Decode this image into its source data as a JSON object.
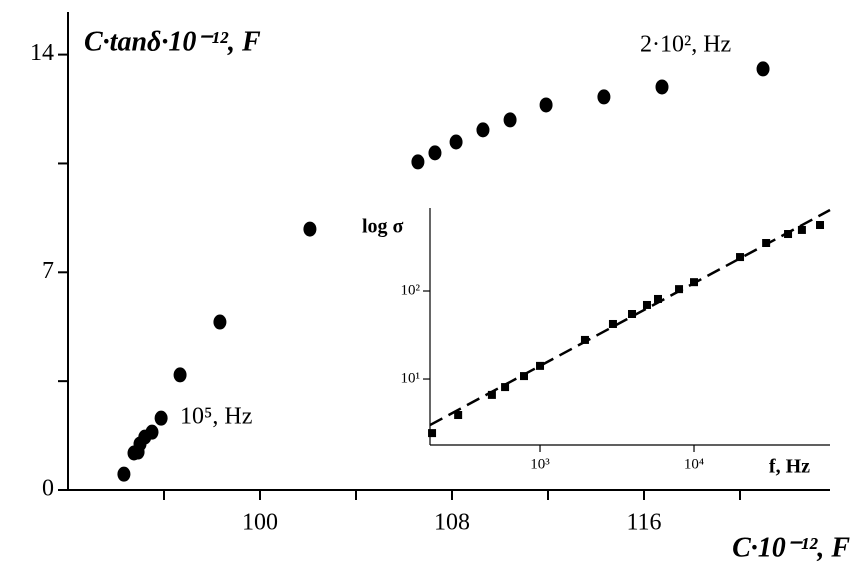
{
  "chart_data": [
    {
      "type": "scatter",
      "ylabel": "C·tanδ·10⁻¹², F",
      "xlabel": "C·10⁻¹², F",
      "annotations": [
        "2·10², Hz",
        "10⁵, Hz"
      ],
      "xlim": [
        92,
        123.75
      ],
      "ylim": [
        0,
        15.37
      ],
      "xticks": [
        100,
        108,
        116
      ],
      "xminor": [
        96,
        104,
        112,
        120
      ],
      "yticks": [
        0,
        7,
        14
      ],
      "yminor": [
        3.5,
        10.5
      ],
      "series": [
        {
          "color": "#000000",
          "marker": "dot",
          "x": [
            94.33,
            94.75,
            94.92,
            95.0,
            95.2,
            95.5,
            95.88,
            96.67,
            98.33,
            102.08,
            106.58,
            107.29,
            108.17,
            109.29,
            110.42,
            111.92,
            114.33,
            116.75,
            120.96
          ],
          "values": [
            0.51,
            1.19,
            1.22,
            1.48,
            1.7,
            1.86,
            2.31,
            3.7,
            5.4,
            8.39,
            10.55,
            10.84,
            11.19,
            11.58,
            11.9,
            12.38,
            12.64,
            12.96,
            13.54
          ]
        }
      ]
    },
    {
      "type": "scatter",
      "log": true,
      "ylabel": "log σ",
      "xlabel": "f, Hz",
      "xlim": [
        193,
        76400
      ],
      "ylim": [
        1.78,
        877
      ],
      "xticks": [
        {
          "value": 1000,
          "label": "10³"
        },
        {
          "value": 10000,
          "label": "10⁴"
        }
      ],
      "yticks": [
        {
          "value": 10,
          "label": "10¹"
        },
        {
          "value": 100,
          "label": "10²"
        }
      ],
      "series": [
        {
          "color": "#000000",
          "marker": "square",
          "x": [
            199,
            294,
            487,
            593,
            787,
            1000,
            1958,
            2976,
            3957,
            4950,
            5836,
            7993,
            10000,
            19900,
            29400,
            40800,
            50200,
            65800
          ],
          "values": [
            2.43,
            3.9,
            6.6,
            8.1,
            10.8,
            14.1,
            27.8,
            42.2,
            54.8,
            69.4,
            81.2,
            105,
            126,
            243,
            351,
            444,
            494,
            562
          ]
        },
        {
          "color": "#000000",
          "line": "dashed",
          "x": [
            193,
            76400
          ],
          "values": [
            3.0,
            832
          ]
        }
      ]
    }
  ]
}
